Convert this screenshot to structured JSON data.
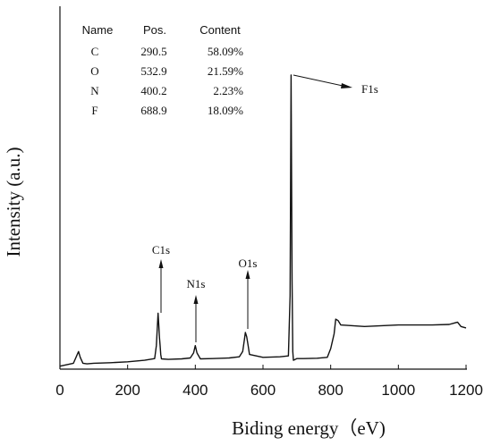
{
  "chart_data": {
    "type": "line",
    "title": "",
    "xlabel": "Biding energy（eV)",
    "ylabel": "Intensity (a.u.)",
    "xlim": [
      0,
      1200
    ],
    "x_ticks": [
      "0",
      "200",
      "400",
      "600",
      "800",
      "1000",
      "1200"
    ],
    "grid": false,
    "legend": "none",
    "series": [
      {
        "x": [
          0,
          40,
          55,
          60,
          68,
          80,
          100,
          150,
          200,
          250,
          280,
          285,
          288,
          290,
          292,
          294,
          296,
          298,
          300,
          320,
          360,
          385,
          395,
          400,
          405,
          415,
          450,
          500,
          530,
          540,
          545,
          548,
          552,
          556,
          560,
          600,
          650,
          675,
          680,
          683,
          686,
          688,
          690,
          693,
          697,
          700,
          720,
          760,
          790,
          800,
          810,
          815,
          822,
          830,
          900,
          1000,
          1100,
          1150,
          1175,
          1185,
          1200
        ],
        "y": [
          1,
          2,
          6,
          4,
          2,
          1.8,
          2,
          2.2,
          2.5,
          3,
          3.6,
          8,
          15,
          19,
          15,
          11,
          8,
          5,
          3.5,
          3.3,
          3.5,
          3.8,
          5.5,
          8,
          5.5,
          3.5,
          3.6,
          3.8,
          4.2,
          6,
          10,
          12.5,
          11,
          8,
          5,
          4,
          4.2,
          4.5,
          25,
          100,
          30,
          6,
          3,
          3.2,
          3.4,
          3.6,
          3.6,
          3.7,
          4,
          7,
          12,
          17,
          16.5,
          15,
          14.5,
          15,
          15,
          15.2,
          16,
          14.5,
          14
        ]
      }
    ],
    "annotations": [
      {
        "label": "F1s",
        "x": 688.9
      },
      {
        "label": "C1s",
        "x": 290.5
      },
      {
        "label": "N1s",
        "x": 400.2
      },
      {
        "label": "O1s",
        "x": 532.9
      }
    ],
    "table": {
      "headers": [
        "Name",
        "Pos.",
        "Content"
      ],
      "rows": [
        [
          "C",
          "290.5",
          "58.09%"
        ],
        [
          "O",
          "532.9",
          "21.59%"
        ],
        [
          "N",
          "400.2",
          "2.23%"
        ],
        [
          "F",
          "688.9",
          "18.09%"
        ]
      ]
    }
  },
  "colors": {
    "line": "#111111",
    "axis": "#111111",
    "background": "#ffffff"
  }
}
